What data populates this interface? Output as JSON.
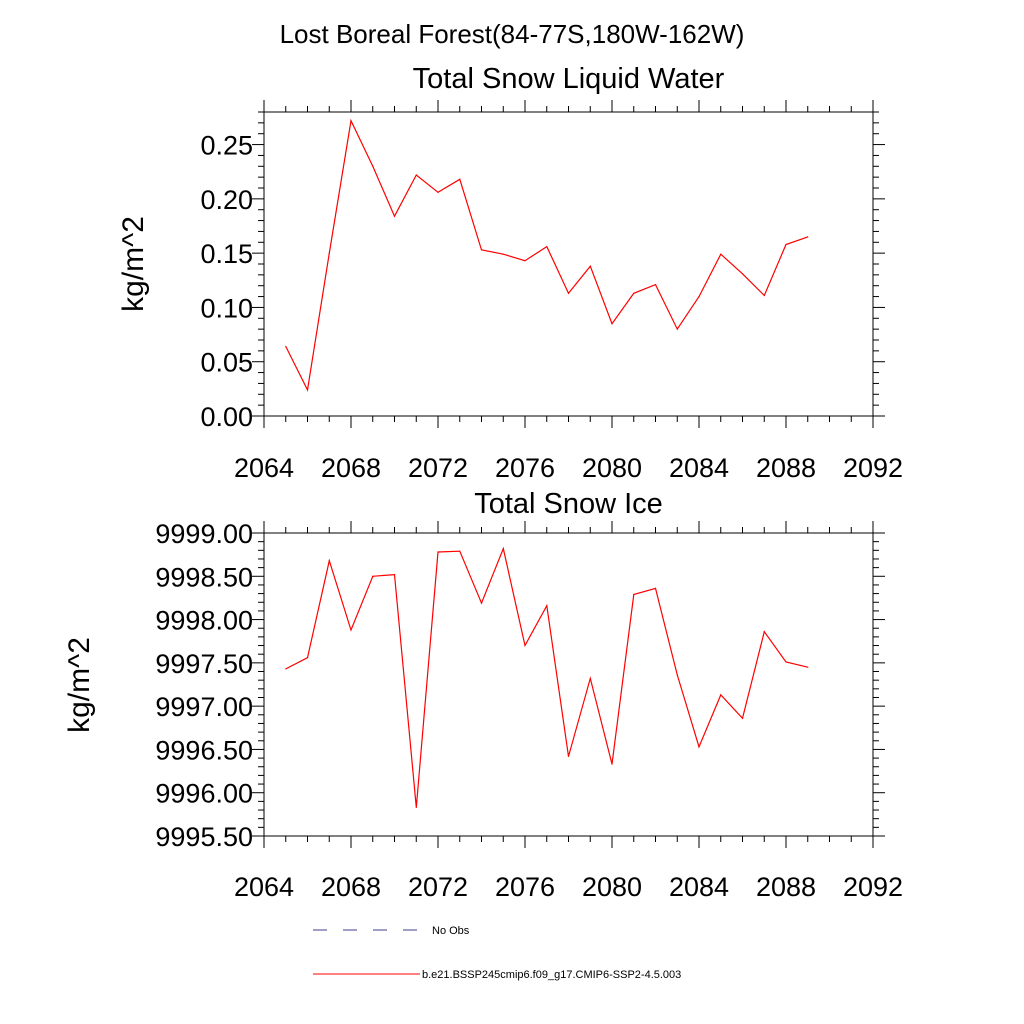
{
  "figure": {
    "title": "Lost Boreal Forest(84-77S,180W-162W)"
  },
  "legend": {
    "items": [
      {
        "label": "No Obs",
        "color": "#3d3d8f",
        "style": "dashed"
      },
      {
        "label": "b.e21.BSSP245cmip6.f09_g17.CMIP6-SSP2-4.5.003",
        "color": "#ff0000",
        "style": "solid"
      }
    ]
  },
  "chart_data": [
    {
      "type": "line",
      "title": "Total Snow Liquid Water",
      "ylabel": "kg/m^2",
      "xlabel": "",
      "xlim": [
        2064,
        2092
      ],
      "ylim": [
        0.0,
        0.28
      ],
      "xticks": [
        "2064",
        "2068",
        "2072",
        "2076",
        "2080",
        "2084",
        "2088",
        "2092"
      ],
      "yticks": [
        "0.00",
        "0.05",
        "0.10",
        "0.15",
        "0.20",
        "0.25"
      ],
      "grid": false,
      "series": [
        {
          "name": "b.e21.BSSP245cmip6.f09_g17.CMIP6-SSP2-4.5.003",
          "color": "#ff0000",
          "x": [
            2065,
            2066,
            2067,
            2068,
            2069,
            2070,
            2071,
            2072,
            2073,
            2074,
            2075,
            2076,
            2077,
            2078,
            2079,
            2080,
            2081,
            2082,
            2083,
            2084,
            2085,
            2086,
            2087,
            2088,
            2089
          ],
          "values": [
            0.064,
            0.024,
            0.15,
            0.272,
            0.23,
            0.184,
            0.222,
            0.206,
            0.218,
            0.153,
            0.149,
            0.143,
            0.156,
            0.113,
            0.138,
            0.085,
            0.113,
            0.121,
            0.08,
            0.11,
            0.149,
            0.131,
            0.111,
            0.158,
            0.165
          ]
        }
      ]
    },
    {
      "type": "line",
      "title": "Total Snow Ice",
      "ylabel": "kg/m^2",
      "xlabel": "",
      "xlim": [
        2064,
        2092
      ],
      "ylim": [
        9995.5,
        9999.0
      ],
      "xticks": [
        "2064",
        "2068",
        "2072",
        "2076",
        "2080",
        "2084",
        "2088",
        "2092"
      ],
      "yticks": [
        "9995.50",
        "9996.00",
        "9996.50",
        "9997.00",
        "9997.50",
        "9998.00",
        "9998.50",
        "9999.00"
      ],
      "grid": false,
      "series": [
        {
          "name": "b.e21.BSSP245cmip6.f09_g17.CMIP6-SSP2-4.5.003",
          "color": "#ff0000",
          "x": [
            2065,
            2066,
            2067,
            2068,
            2069,
            2070,
            2071,
            2072,
            2073,
            2074,
            2075,
            2076,
            2077,
            2078,
            2079,
            2080,
            2081,
            2082,
            2083,
            2084,
            2085,
            2086,
            2087,
            2088,
            2089
          ],
          "values": [
            9997.43,
            9997.56,
            9998.68,
            9997.88,
            9998.5,
            9998.52,
            9995.83,
            9998.78,
            9998.79,
            9998.19,
            9998.82,
            9997.7,
            9998.16,
            9996.42,
            9997.32,
            9996.33,
            9998.29,
            9998.36,
            9997.36,
            9996.53,
            9997.13,
            9996.86,
            9997.86,
            9997.51,
            9997.45
          ]
        }
      ]
    }
  ]
}
